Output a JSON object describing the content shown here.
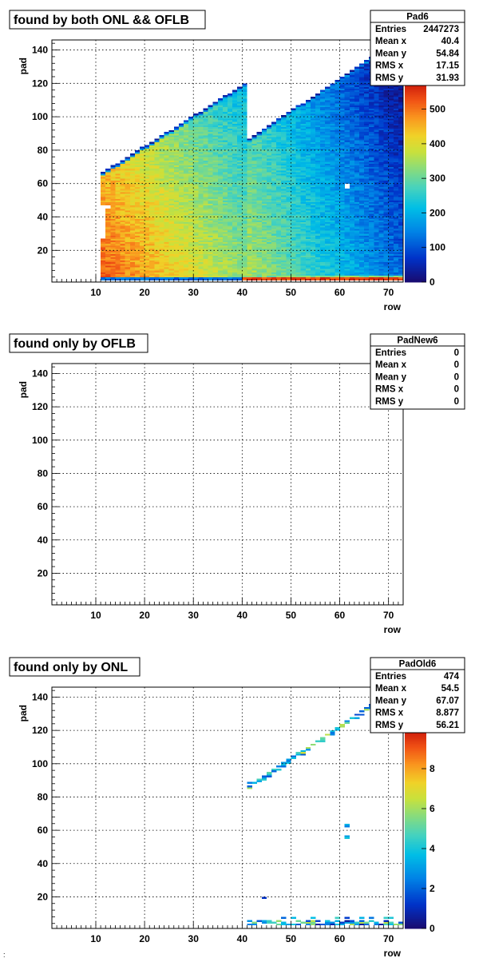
{
  "footnote": ":",
  "chart_data": [
    {
      "type": "heatmap",
      "title": "found by both ONL && OFLB",
      "xlabel": "row",
      "ylabel": "pad",
      "xlim": [
        1,
        73
      ],
      "ylim": [
        1,
        146
      ],
      "xticks": [
        10,
        20,
        30,
        40,
        50,
        60,
        70
      ],
      "yticks": [
        20,
        40,
        60,
        80,
        100,
        120,
        140
      ],
      "grid": true,
      "stats": {
        "name": "Pad6",
        "rows": [
          {
            "label": "Entries",
            "value": "2447273"
          },
          {
            "label": "Mean x",
            "value": "40.4"
          },
          {
            "label": "Mean y",
            "value": "54.84"
          },
          {
            "label": "RMS x",
            "value": "17.15"
          },
          {
            "label": "RMS y",
            "value": "31.93"
          }
        ]
      },
      "colorbar": {
        "min": 0,
        "max": 580,
        "ticks": [
          0,
          100,
          200,
          300,
          400,
          500
        ]
      },
      "distribution": "dense"
    },
    {
      "type": "heatmap",
      "title": "found only by OFLB",
      "xlabel": "row",
      "ylabel": "pad",
      "xlim": [
        1,
        73
      ],
      "ylim": [
        1,
        146
      ],
      "xticks": [
        10,
        20,
        30,
        40,
        50,
        60,
        70
      ],
      "yticks": [
        20,
        40,
        60,
        80,
        100,
        120,
        140
      ],
      "grid": true,
      "stats": {
        "name": "PadNew6",
        "rows": [
          {
            "label": "Entries",
            "value": "0"
          },
          {
            "label": "Mean x",
            "value": "0"
          },
          {
            "label": "Mean y",
            "value": "0"
          },
          {
            "label": "RMS x",
            "value": "0"
          },
          {
            "label": "RMS y",
            "value": "0"
          }
        ]
      },
      "colorbar": null,
      "distribution": "empty"
    },
    {
      "type": "heatmap",
      "title": "found only by ONL",
      "xlabel": "row",
      "ylabel": "pad",
      "xlim": [
        1,
        73
      ],
      "ylim": [
        1,
        146
      ],
      "xticks": [
        10,
        20,
        30,
        40,
        50,
        60,
        70
      ],
      "yticks": [
        20,
        40,
        60,
        80,
        100,
        120,
        140
      ],
      "grid": true,
      "stats": {
        "name": "PadOld6",
        "rows": [
          {
            "label": "Entries",
            "value": "474"
          },
          {
            "label": "Mean x",
            "value": "54.5"
          },
          {
            "label": "Mean y",
            "value": "67.07"
          },
          {
            "label": "RMS x",
            "value": "8.877"
          },
          {
            "label": "RMS y",
            "value": "56.21"
          }
        ]
      },
      "colorbar": {
        "min": 0,
        "max": 10,
        "ticks": [
          0,
          2,
          4,
          6,
          8
        ]
      },
      "distribution": "sparse"
    }
  ]
}
